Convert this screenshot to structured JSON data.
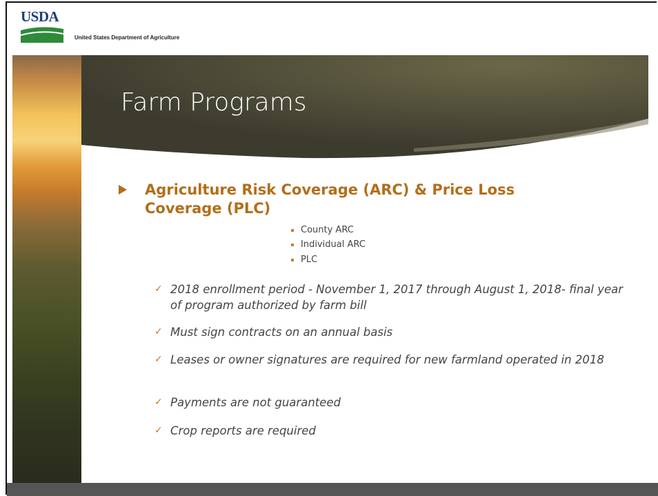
{
  "header": {
    "logo": "USDA",
    "agency": "United States Department of Agriculture"
  },
  "title": "Farm Programs",
  "main_bullet": "Agriculture Risk Coverage (ARC) & Price Loss Coverage (PLC)",
  "sub_bullets": [
    "County ARC",
    "Individual ARC",
    "PLC"
  ],
  "checks": [
    "2018 enrollment period  - November 1, 2017 through August 1, 2018- final year of program authorized by farm bill",
    "Must sign contracts on an annual basis",
    "Leases or owner signatures are required for new farmland operated in 2018",
    "Payments are not guaranteed",
    "Crop reports are required"
  ]
}
